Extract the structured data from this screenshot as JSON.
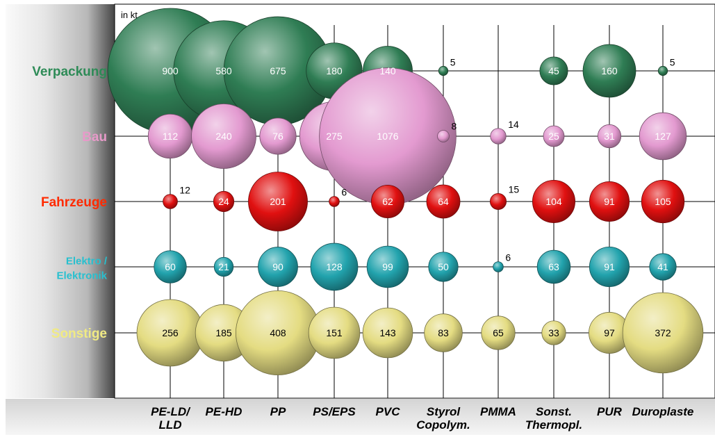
{
  "chart_data": {
    "type": "bubble-matrix",
    "unit_label": "in kt",
    "rows": [
      {
        "name": "Verpackung",
        "label_lines": [
          "Verpackung"
        ],
        "color": "#2f7d54",
        "text_color": "#2e8b57",
        "values": [
          900,
          580,
          675,
          180,
          140,
          5,
          null,
          45,
          160,
          5
        ]
      },
      {
        "name": "Bau",
        "label_lines": [
          "Bau"
        ],
        "color": "#e39ad0",
        "text_color": "#e79ac9",
        "values": [
          112,
          240,
          76,
          275,
          1076,
          8,
          14,
          25,
          31,
          127
        ]
      },
      {
        "name": "Fahrzeuge",
        "label_lines": [
          "Fahrzeuge"
        ],
        "color": "#e01010",
        "text_color": "#ff2a00",
        "values": [
          12,
          24,
          201,
          6,
          62,
          64,
          15,
          104,
          91,
          105
        ]
      },
      {
        "name": "Elektro / Elektronik",
        "label_lines": [
          "Elektro /",
          "Elektronik"
        ],
        "color": "#22a3ad",
        "text_color": "#27c0cf",
        "values": [
          60,
          21,
          90,
          128,
          99,
          50,
          6,
          63,
          91,
          41
        ]
      },
      {
        "name": "Sonstige",
        "label_lines": [
          "Sonstige"
        ],
        "color": "#e4dc82",
        "text_color": "#f0ea84",
        "values": [
          256,
          185,
          408,
          151,
          143,
          83,
          65,
          33,
          97,
          372
        ]
      }
    ],
    "columns": [
      {
        "name": "PE-LD/LLD",
        "label_lines": [
          "PE-LD/",
          "LLD"
        ]
      },
      {
        "name": "PE-HD",
        "label_lines": [
          "PE-HD"
        ]
      },
      {
        "name": "PP",
        "label_lines": [
          "PP"
        ]
      },
      {
        "name": "PS/EPS",
        "label_lines": [
          "PS/EPS"
        ]
      },
      {
        "name": "PVC",
        "label_lines": [
          "PVC"
        ]
      },
      {
        "name": "Styrol Copolym.",
        "label_lines": [
          "Styrol",
          "Copolym."
        ]
      },
      {
        "name": "PMMA",
        "label_lines": [
          "PMMA"
        ]
      },
      {
        "name": "Sonst. Thermopl.",
        "label_lines": [
          "Sonst.",
          "Thermopl."
        ]
      },
      {
        "name": "PUR",
        "label_lines": [
          "PUR"
        ]
      },
      {
        "name": "Duroplaste",
        "label_lines": [
          "Duroplaste"
        ]
      }
    ],
    "bubble_area_proportional_to_value": true,
    "grid": true
  }
}
